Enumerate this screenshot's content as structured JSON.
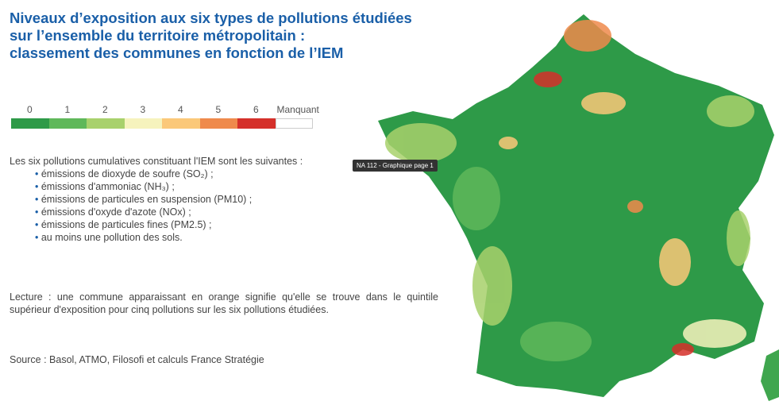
{
  "header": {
    "title": [
      "Niveaux d’exposition aux six types de pollutions étudiées",
      "sur l’ensemble du territoire métropolitain :",
      "classement des communes en fonction de l’IEM"
    ]
  },
  "legend": {
    "items": [
      {
        "label": "0",
        "color": "#2e9a48"
      },
      {
        "label": "1",
        "color": "#5fb85a"
      },
      {
        "label": "2",
        "color": "#a8d16c"
      },
      {
        "label": "3",
        "color": "#f6f3bd"
      },
      {
        "label": "4",
        "color": "#fbc879"
      },
      {
        "label": "5",
        "color": "#ef8a4c"
      },
      {
        "label": "6",
        "color": "#d5302a"
      },
      {
        "label": "Manquant",
        "color": "#ffffff"
      }
    ]
  },
  "intro": "Les six pollutions cumulatives constituant l'IEM sont les suivantes :",
  "list": [
    "émissions de dioxyde de soufre (SO₂) ;",
    "émissions d'ammoniac (NH₃) ;",
    "émissions de particules en suspension (PM10) ;",
    "émissions d'oxyde d'azote (NOx) ;",
    "émissions de particules fines (PM2.5) ;",
    "au moins une pollution des sols."
  ],
  "reading": "Lecture : une commune apparaissant en orange signifie qu'elle se trouve dans le quintile supérieur d'exposition pour cinq pollutions sur les six pollutions étudiées.",
  "source": "Source : Basol, ATMO, Filosofi et calculs France Stratégie",
  "tooltip": "NA 112 - Graphique page 1"
}
